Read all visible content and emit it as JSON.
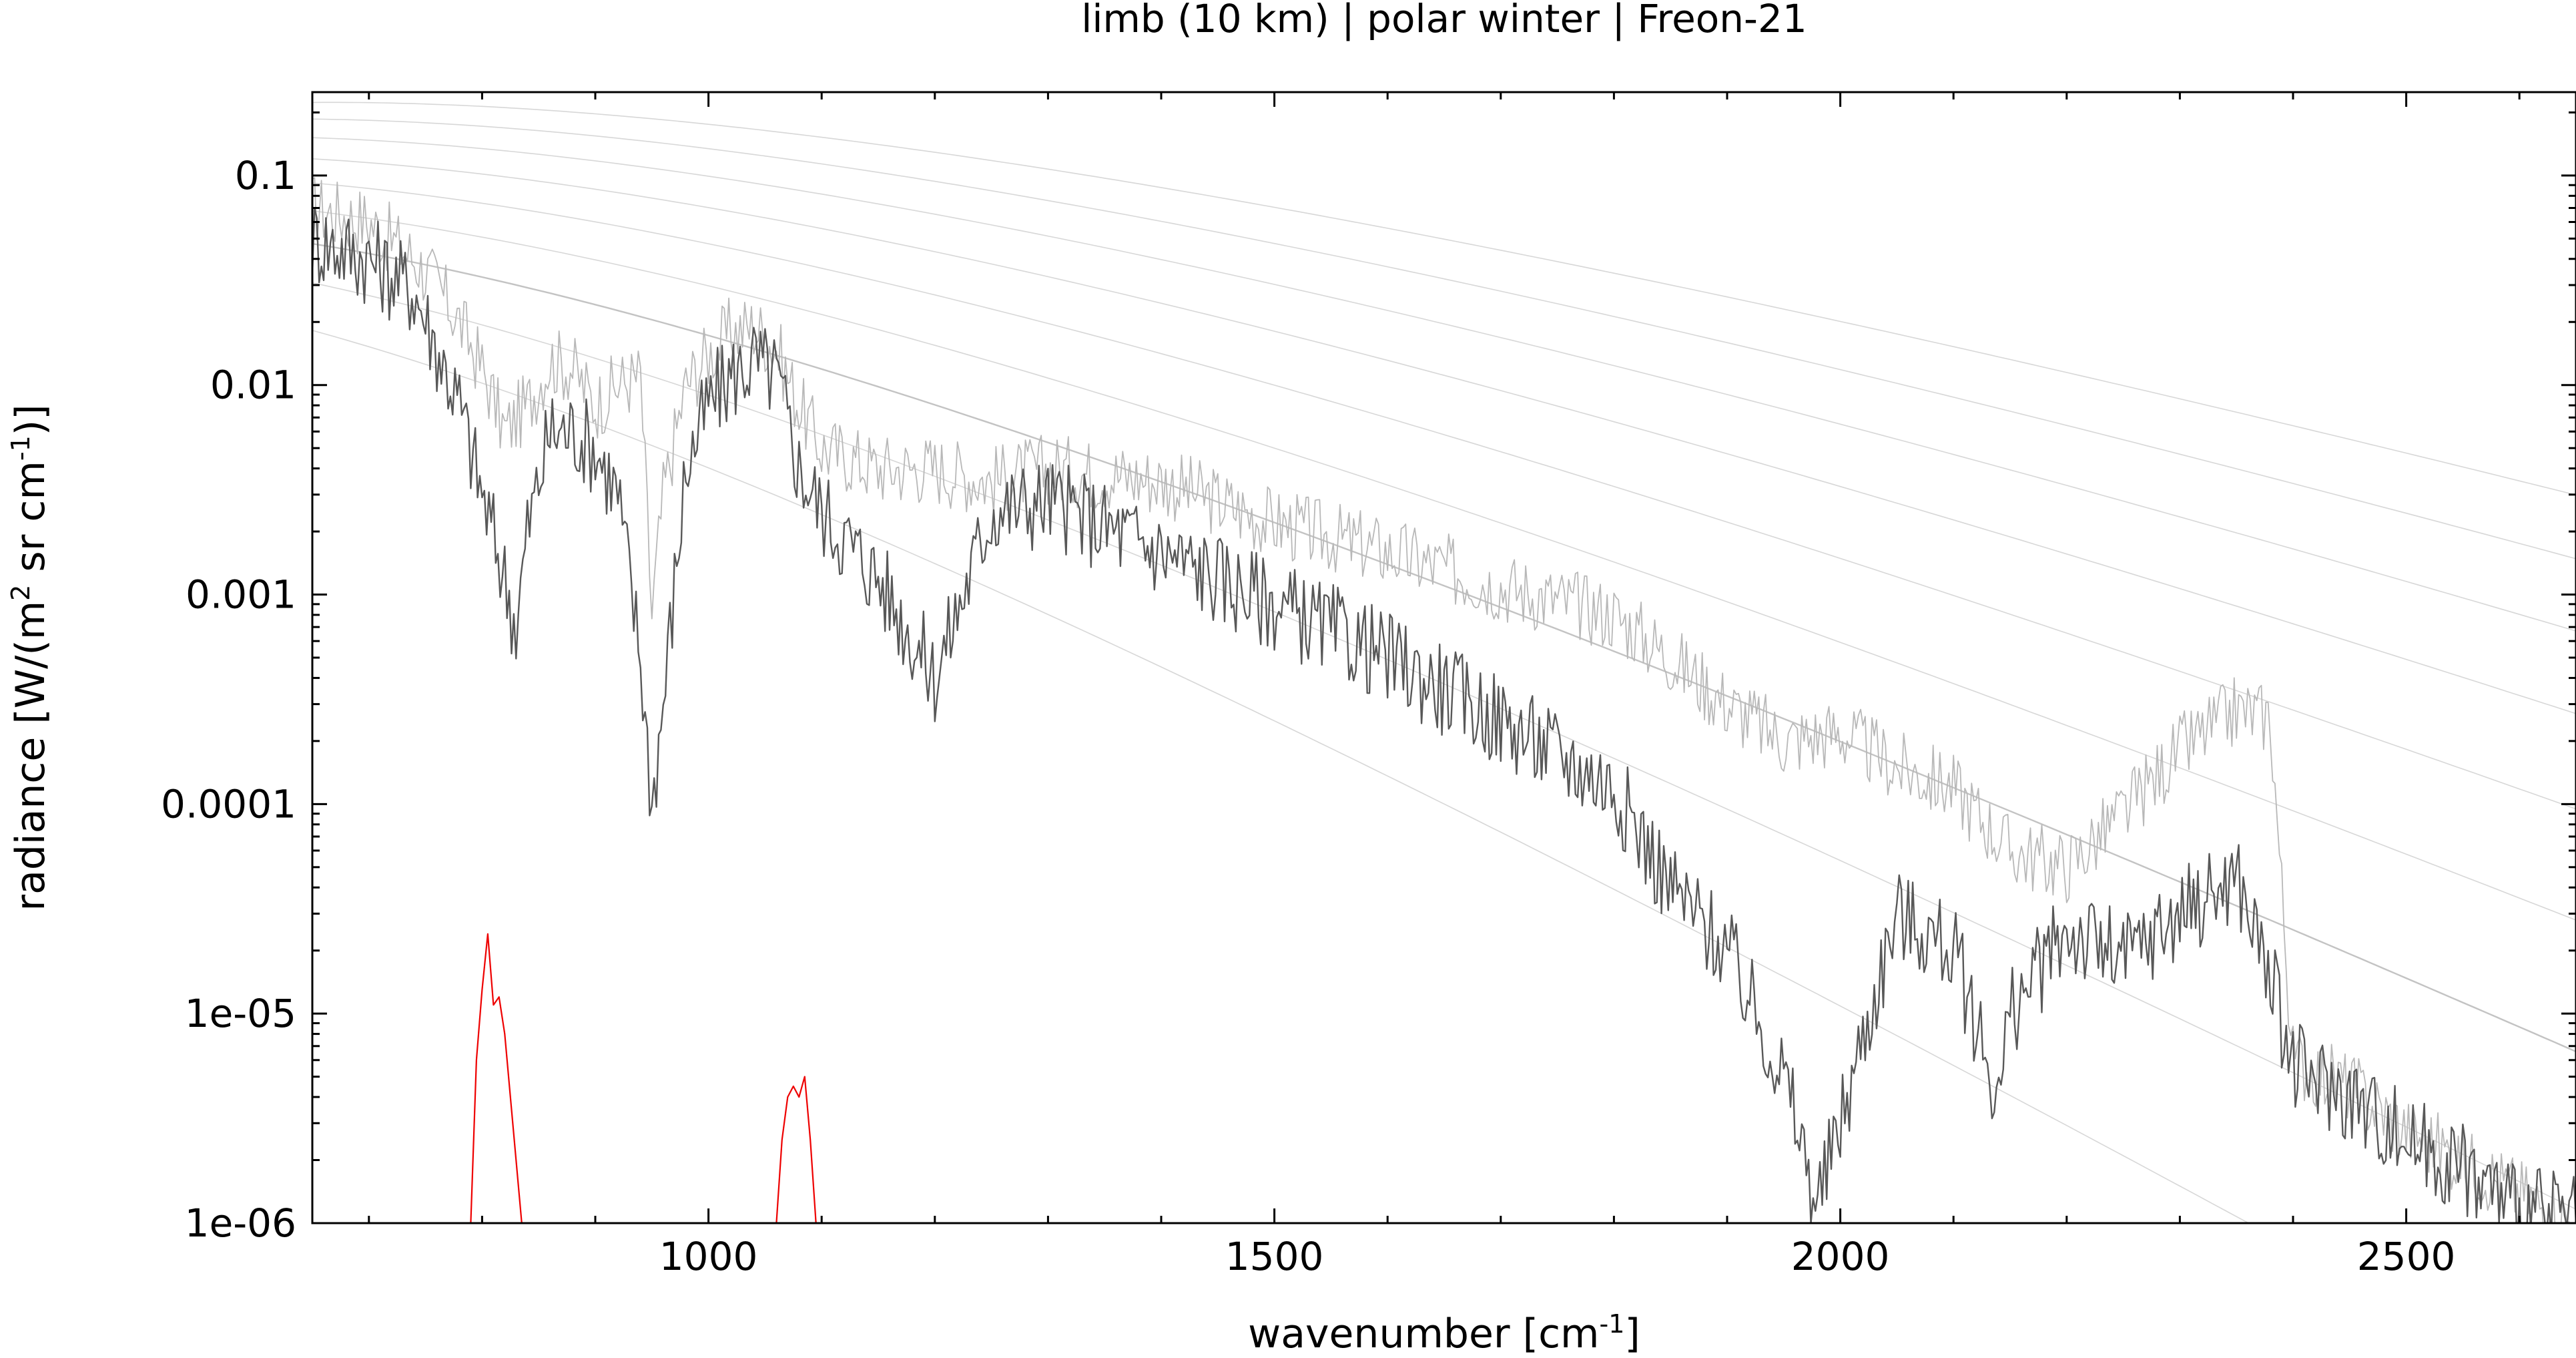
{
  "chart_data": {
    "type": "line",
    "title": "limb (10 km) | polar winter | Freon-21",
    "xlabel": "wavenumber [cm-1]",
    "xlabel_parts": {
      "main": "wavenumber [cm",
      "sup": "-1",
      "end": "]"
    },
    "ylabel": "radiance [W/(m2 sr cm-1)]",
    "ylabel_parts": {
      "pre": "radiance [W/(m",
      "sup1": "2",
      "mid": " sr cm",
      "sup2": "-1",
      "end": ")]"
    },
    "y_scale": "log",
    "xlim": [
      650,
      2650
    ],
    "ylim": [
      1e-06,
      0.25
    ],
    "grid": false,
    "legend": "none",
    "x_ticks": [
      {
        "value": 1000,
        "label": "1000"
      },
      {
        "value": 1500,
        "label": "1500"
      },
      {
        "value": 2000,
        "label": "2000"
      },
      {
        "value": 2500,
        "label": "2500"
      }
    ],
    "y_ticks": [
      {
        "value": 0.1,
        "label": "0.1"
      },
      {
        "value": 0.01,
        "label": "0.01"
      },
      {
        "value": 0.001,
        "label": "0.001"
      },
      {
        "value": 0.0001,
        "label": "0.0001"
      },
      {
        "value": 1e-05,
        "label": "1e-05"
      },
      {
        "value": 1e-06,
        "label": "1e-06"
      }
    ],
    "planck_reference_temperatures_K": [
      180,
      200,
      220,
      240,
      260,
      280,
      300,
      320,
      340
    ],
    "series": [
      {
        "color": "#b8b8b8",
        "role": "total radiance spectrum (light envelope)",
        "x": [
          650,
          700,
          740,
          760,
          780,
          800,
          820,
          840,
          860,
          880,
          900,
          920,
          940,
          950,
          960,
          980,
          1000,
          1020,
          1040,
          1060,
          1080,
          1100,
          1150,
          1200,
          1250,
          1300,
          1400,
          1500,
          1600,
          1700,
          1800,
          1850,
          1900,
          1950,
          2000,
          2050,
          2100,
          2150,
          2200,
          2250,
          2300,
          2350,
          2380,
          2400,
          2450,
          2500,
          2550,
          2600,
          2650
        ],
        "y": [
          0.07,
          0.06,
          0.04,
          0.03,
          0.02,
          0.012,
          0.006,
          0.008,
          0.013,
          0.012,
          0.008,
          0.01,
          0.011,
          0.0008,
          0.003,
          0.01,
          0.014,
          0.018,
          0.019,
          0.015,
          0.008,
          0.005,
          0.004,
          0.004,
          0.0035,
          0.004,
          0.0035,
          0.0022,
          0.0016,
          0.0011,
          0.0008,
          0.0005,
          0.0003,
          0.0002,
          0.00022,
          0.00015,
          0.00012,
          6e-05,
          5e-05,
          9e-05,
          0.00018,
          0.00028,
          0.00026,
          6e-06,
          4.5e-06,
          2.8e-06,
          2e-06,
          1.4e-06,
          1e-06
        ]
      },
      {
        "color": "#585858",
        "role": "total radiance spectrum (dark minima)",
        "x": [
          650,
          700,
          740,
          760,
          780,
          800,
          820,
          830,
          840,
          860,
          880,
          900,
          920,
          940,
          950,
          960,
          980,
          1000,
          1020,
          1040,
          1060,
          1080,
          1100,
          1150,
          1200,
          1250,
          1300,
          1400,
          1500,
          1600,
          1700,
          1800,
          1850,
          1900,
          1950,
          1980,
          2000,
          2050,
          2100,
          2140,
          2150,
          2200,
          2250,
          2300,
          2350,
          2380,
          2400,
          2450,
          2500,
          2550,
          2600,
          2650
        ],
        "y": [
          0.05,
          0.04,
          0.028,
          0.015,
          0.008,
          0.003,
          0.0012,
          0.0007,
          0.002,
          0.006,
          0.006,
          0.005,
          0.003,
          0.0005,
          0.0001,
          0.0003,
          0.004,
          0.008,
          0.011,
          0.013,
          0.011,
          0.004,
          0.0025,
          0.0012,
          0.0004,
          0.0025,
          0.0028,
          0.0016,
          0.0009,
          0.0005,
          0.00025,
          0.00012,
          4e-05,
          2e-05,
          5e-06,
          1.2e-06,
          3e-06,
          3e-05,
          2e-05,
          4e-06,
          1e-05,
          2.5e-05,
          1.8e-05,
          3e-05,
          4.5e-05,
          1.5e-05,
          5.5e-06,
          4e-06,
          2.5e-06,
          1.8e-06,
          1.2e-06,
          1e-06
        ]
      },
      {
        "color": "#ee0000",
        "role": "Freon-21 contribution",
        "segments": [
          {
            "x": [
              790,
              795,
              800,
              805,
              810,
              815,
              820,
              825,
              830,
              835
            ],
            "y": [
              1e-06,
              6e-06,
              1.3e-05,
              2.4e-05,
              1.1e-05,
              1.2e-05,
              8e-06,
              4e-06,
              2e-06,
              1e-06
            ]
          },
          {
            "x": [
              1060,
              1065,
              1070,
              1075,
              1080,
              1085,
              1090,
              1095
            ],
            "y": [
              1e-06,
              2.5e-06,
              4e-06,
              4.5e-06,
              4e-06,
              5e-06,
              2.5e-06,
              1e-06
            ]
          }
        ]
      }
    ]
  }
}
